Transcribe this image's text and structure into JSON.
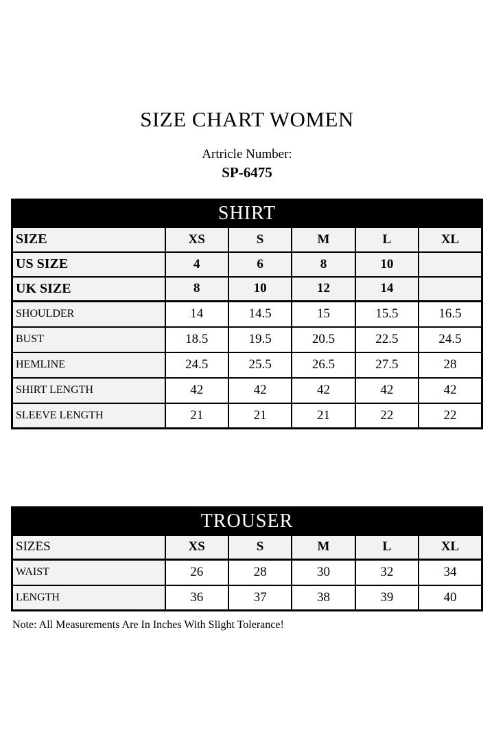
{
  "page": {
    "title": "SIZE CHART WOMEN",
    "article_label": "Artricle Number:",
    "article_number": "SP-6475",
    "note": "Note: All Measurements Are In Inches With Slight Tolerance!"
  },
  "colors": {
    "section_header_bg": "#000000",
    "section_header_text": "#ffffff",
    "label_cell_bg": "#f2f2f2",
    "border": "#000000",
    "page_bg": "#ffffff"
  },
  "tables": [
    {
      "header": "SHIRT",
      "rows": [
        {
          "kind": "size",
          "label_bold": true,
          "label": "SIZE",
          "values": [
            "XS",
            "S",
            "M",
            "L",
            "XL"
          ]
        },
        {
          "kind": "size",
          "label_bold": true,
          "label": "US SIZE",
          "values": [
            "4",
            "6",
            "8",
            "10",
            ""
          ]
        },
        {
          "kind": "size",
          "label_bold": true,
          "label": "UK SIZE",
          "values": [
            "8",
            "10",
            "12",
            "14",
            ""
          ]
        },
        {
          "kind": "measure",
          "label_bold": false,
          "label": "SHOULDER",
          "values": [
            "14",
            "14.5",
            "15",
            "15.5",
            "16.5"
          ]
        },
        {
          "kind": "measure",
          "label_bold": false,
          "label": "BUST",
          "values": [
            "18.5",
            "19.5",
            "20.5",
            "22.5",
            "24.5"
          ]
        },
        {
          "kind": "measure",
          "label_bold": false,
          "label": "HEMLINE",
          "values": [
            "24.5",
            "25.5",
            "26.5",
            "27.5",
            "28"
          ]
        },
        {
          "kind": "measure",
          "label_bold": false,
          "label": "SHIRT LENGTH",
          "values": [
            "42",
            "42",
            "42",
            "42",
            "42"
          ]
        },
        {
          "kind": "measure",
          "label_bold": false,
          "label": "SLEEVE LENGTH",
          "values": [
            "21",
            "21",
            "21",
            "22",
            "22"
          ]
        }
      ]
    },
    {
      "header": "TROUSER",
      "rows": [
        {
          "kind": "size",
          "label_bold": false,
          "label": "SIZES",
          "values": [
            "XS",
            "S",
            "M",
            "L",
            "XL"
          ]
        },
        {
          "kind": "measure",
          "label_bold": false,
          "label": "WAIST",
          "values": [
            "26",
            "28",
            "30",
            "32",
            "34"
          ]
        },
        {
          "kind": "measure",
          "label_bold": false,
          "label": "LENGTH",
          "values": [
            "36",
            "37",
            "38",
            "39",
            "40"
          ]
        }
      ]
    }
  ]
}
